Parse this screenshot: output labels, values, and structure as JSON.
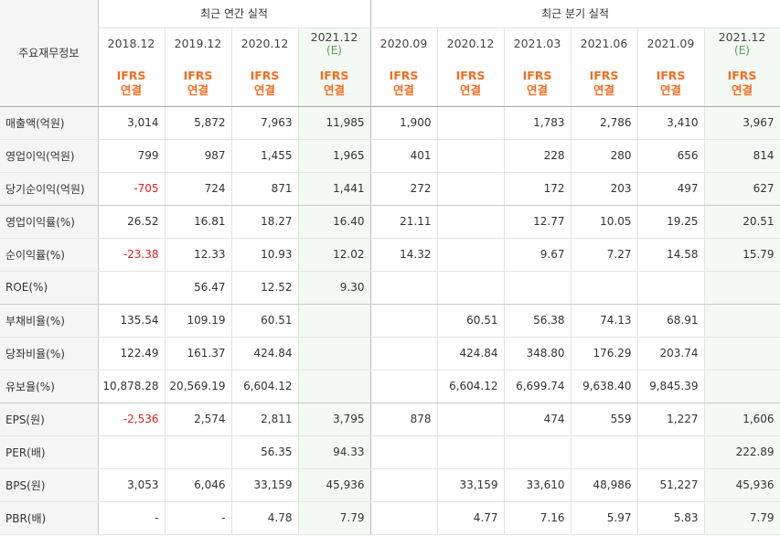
{
  "header": {
    "corner_label": "주요재무정보",
    "annual_group": "최근 연간 실적",
    "quarter_group": "최근 분기 실적"
  },
  "periods": [
    {
      "label": "2018.12",
      "sub": "",
      "ifrs1": "IFRS",
      "ifrs2": "연결"
    },
    {
      "label": "2019.12",
      "sub": "",
      "ifrs1": "IFRS",
      "ifrs2": "연결"
    },
    {
      "label": "2020.12",
      "sub": "",
      "ifrs1": "IFRS",
      "ifrs2": "연결"
    },
    {
      "label": "2021.12",
      "sub": "(E)",
      "ifrs1": "IFRS",
      "ifrs2": "연결"
    },
    {
      "label": "2020.09",
      "sub": "",
      "ifrs1": "IFRS",
      "ifrs2": "연결"
    },
    {
      "label": "2020.12",
      "sub": "",
      "ifrs1": "IFRS",
      "ifrs2": "연결"
    },
    {
      "label": "2021.03",
      "sub": "",
      "ifrs1": "IFRS",
      "ifrs2": "연결"
    },
    {
      "label": "2021.06",
      "sub": "",
      "ifrs1": "IFRS",
      "ifrs2": "연결"
    },
    {
      "label": "2021.09",
      "sub": "",
      "ifrs1": "IFRS",
      "ifrs2": "연결"
    },
    {
      "label": "2021.12",
      "sub": "(E)",
      "ifrs1": "IFRS",
      "ifrs2": "연결"
    }
  ],
  "rows": [
    {
      "label": "매출액(억원)",
      "values": [
        "3,014",
        "5,872",
        "7,963",
        "11,985",
        "1,900",
        "",
        "1,783",
        "2,786",
        "3,410",
        "3,967"
      ]
    },
    {
      "label": "영업이익(억원)",
      "values": [
        "799",
        "987",
        "1,455",
        "1,965",
        "401",
        "",
        "228",
        "280",
        "656",
        "814"
      ]
    },
    {
      "label": "당기순이익(억원)",
      "values": [
        "-705",
        "724",
        "871",
        "1,441",
        "272",
        "",
        "172",
        "203",
        "497",
        "627"
      ]
    },
    {
      "label": "영업이익률(%)",
      "values": [
        "26.52",
        "16.81",
        "18.27",
        "16.40",
        "21.11",
        "",
        "12.77",
        "10.05",
        "19.25",
        "20.51"
      ]
    },
    {
      "label": "순이익률(%)",
      "values": [
        "-23.38",
        "12.33",
        "10.93",
        "12.02",
        "14.32",
        "",
        "9.67",
        "7.27",
        "14.58",
        "15.79"
      ]
    },
    {
      "label": "ROE(%)",
      "values": [
        "",
        "56.47",
        "12.52",
        "9.30",
        "",
        "",
        "",
        "",
        "",
        ""
      ]
    },
    {
      "label": "부채비율(%)",
      "values": [
        "135.54",
        "109.19",
        "60.51",
        "",
        "",
        "60.51",
        "56.38",
        "74.13",
        "68.91",
        ""
      ]
    },
    {
      "label": "당좌비율(%)",
      "values": [
        "122.49",
        "161.37",
        "424.84",
        "",
        "",
        "424.84",
        "348.80",
        "176.29",
        "203.74",
        ""
      ]
    },
    {
      "label": "유보율(%)",
      "values": [
        "10,878.28",
        "20,569.19",
        "6,604.12",
        "",
        "",
        "6,604.12",
        "6,699.74",
        "9,638.40",
        "9,845.39",
        ""
      ]
    },
    {
      "label": "EPS(원)",
      "values": [
        "-2,536",
        "2,574",
        "2,811",
        "3,795",
        "878",
        "",
        "474",
        "559",
        "1,227",
        "1,606"
      ]
    },
    {
      "label": "PER(배)",
      "values": [
        "",
        "",
        "56.35",
        "94.33",
        "",
        "",
        "",
        "",
        "",
        "222.89"
      ]
    },
    {
      "label": "BPS(원)",
      "values": [
        "3,053",
        "6,046",
        "33,159",
        "45,936",
        "",
        "33,159",
        "33,610",
        "48,986",
        "51,227",
        "45,936"
      ]
    },
    {
      "label": "PBR(배)",
      "values": [
        "-",
        "-",
        "4.78",
        "7.79",
        "",
        "4.77",
        "7.16",
        "5.97",
        "5.83",
        "7.79"
      ]
    }
  ],
  "colors": {
    "ifrs": "#f26d21",
    "negative": "#e02020",
    "estimate_bg": "#f3f9f3",
    "estimate_label": "#5aa05a"
  }
}
